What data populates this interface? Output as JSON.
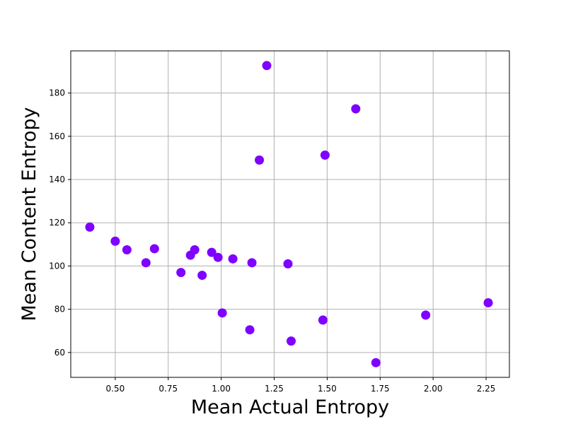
{
  "chart_data": {
    "type": "scatter",
    "title": "",
    "xlabel": "Mean Actual Entropy",
    "ylabel": "Mean Content Entropy",
    "xlim": [
      0.29,
      2.36
    ],
    "ylim": [
      48.5,
      199.5
    ],
    "x_ticks": [
      {
        "value": 0.5,
        "label": "0.50"
      },
      {
        "value": 0.75,
        "label": "0.75"
      },
      {
        "value": 1.0,
        "label": "1.00"
      },
      {
        "value": 1.25,
        "label": "1.25"
      },
      {
        "value": 1.5,
        "label": "1.50"
      },
      {
        "value": 1.75,
        "label": "1.75"
      },
      {
        "value": 2.0,
        "label": "2.00"
      },
      {
        "value": 2.25,
        "label": "2.25"
      }
    ],
    "y_ticks": [
      {
        "value": 60,
        "label": "60"
      },
      {
        "value": 80,
        "label": "80"
      },
      {
        "value": 100,
        "label": "100"
      },
      {
        "value": 120,
        "label": "120"
      },
      {
        "value": 140,
        "label": "140"
      },
      {
        "value": 160,
        "label": "160"
      },
      {
        "value": 180,
        "label": "180"
      }
    ],
    "grid": true,
    "marker_color": "#7f00ff",
    "points": [
      {
        "x": 0.38,
        "y": 118
      },
      {
        "x": 0.5,
        "y": 111.5
      },
      {
        "x": 0.555,
        "y": 107.5
      },
      {
        "x": 0.645,
        "y": 101.5
      },
      {
        "x": 0.685,
        "y": 108
      },
      {
        "x": 0.81,
        "y": 97
      },
      {
        "x": 0.855,
        "y": 105
      },
      {
        "x": 0.875,
        "y": 107.5
      },
      {
        "x": 0.91,
        "y": 95.7
      },
      {
        "x": 0.955,
        "y": 106.3
      },
      {
        "x": 0.985,
        "y": 104
      },
      {
        "x": 1.005,
        "y": 78.3
      },
      {
        "x": 1.055,
        "y": 103.3
      },
      {
        "x": 1.135,
        "y": 70.5
      },
      {
        "x": 1.145,
        "y": 101.5
      },
      {
        "x": 1.18,
        "y": 149
      },
      {
        "x": 1.215,
        "y": 192.7
      },
      {
        "x": 1.315,
        "y": 101
      },
      {
        "x": 1.33,
        "y": 65.3
      },
      {
        "x": 1.48,
        "y": 75
      },
      {
        "x": 1.49,
        "y": 151.3
      },
      {
        "x": 1.635,
        "y": 172.7
      },
      {
        "x": 1.73,
        "y": 55.3
      },
      {
        "x": 1.965,
        "y": 77.3
      },
      {
        "x": 2.26,
        "y": 83
      }
    ]
  }
}
